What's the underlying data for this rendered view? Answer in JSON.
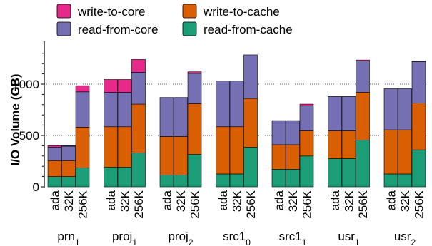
{
  "chart_data": {
    "type": "bar",
    "stacked": true,
    "ylabel": "I/O Volume (GB)",
    "yticks": [
      0,
      500,
      1000
    ],
    "ylim": [
      0,
      1430
    ],
    "grid": "dotted horizontal at 500 and 1000",
    "legend_position": "top",
    "colors": {
      "read-from-cache": "#1b9e77",
      "write-to-cache": "#d95f02",
      "read-from-core": "#7570b3",
      "write-to-core": "#e7298a"
    },
    "legend": [
      {
        "key": "write-to-core",
        "label": "write-to-core"
      },
      {
        "key": "write-to-cache",
        "label": "write-to-cache"
      },
      {
        "key": "read-from-core",
        "label": "read-from-core"
      },
      {
        "key": "read-from-cache",
        "label": "read-from-cache"
      }
    ],
    "series_order": [
      "read-from-cache",
      "write-to-cache",
      "read-from-core",
      "write-to-core"
    ],
    "bar_labels": [
      "ada",
      "32K",
      "256K"
    ],
    "groups": [
      {
        "name": "prn",
        "sub": "1",
        "bars": [
          {
            "read-from-cache": 100,
            "write-to-cache": 155,
            "read-from-core": 130,
            "write-to-core": 15
          },
          {
            "read-from-cache": 100,
            "write-to-cache": 155,
            "read-from-core": 140,
            "write-to-core": 5
          },
          {
            "read-from-cache": 185,
            "write-to-cache": 395,
            "read-from-core": 345,
            "write-to-core": 60
          }
        ]
      },
      {
        "name": "proj",
        "sub": "1",
        "bars": [
          {
            "read-from-cache": 190,
            "write-to-cache": 395,
            "read-from-core": 335,
            "write-to-core": 125
          },
          {
            "read-from-cache": 190,
            "write-to-cache": 395,
            "read-from-core": 335,
            "write-to-core": 125
          },
          {
            "read-from-cache": 330,
            "write-to-cache": 475,
            "read-from-core": 310,
            "write-to-core": 125
          }
        ]
      },
      {
        "name": "proj",
        "sub": "2",
        "bars": [
          {
            "read-from-cache": 115,
            "write-to-cache": 375,
            "read-from-core": 380,
            "write-to-core": 0
          },
          {
            "read-from-cache": 115,
            "write-to-cache": 375,
            "read-from-core": 380,
            "write-to-core": 0
          },
          {
            "read-from-cache": 315,
            "write-to-cache": 495,
            "read-from-core": 295,
            "write-to-core": 15
          }
        ]
      },
      {
        "name": "src1",
        "sub": "0",
        "bars": [
          {
            "read-from-cache": 125,
            "write-to-cache": 460,
            "read-from-core": 445,
            "write-to-core": 0
          },
          {
            "read-from-cache": 125,
            "write-to-cache": 460,
            "read-from-core": 445,
            "write-to-core": 0
          },
          {
            "read-from-cache": 385,
            "write-to-cache": 475,
            "read-from-core": 425,
            "write-to-core": 0
          }
        ]
      },
      {
        "name": "src1",
        "sub": "1",
        "bars": [
          {
            "read-from-cache": 170,
            "write-to-cache": 240,
            "read-from-core": 235,
            "write-to-core": 0
          },
          {
            "read-from-cache": 170,
            "write-to-cache": 240,
            "read-from-core": 235,
            "write-to-core": 0
          },
          {
            "read-from-cache": 300,
            "write-to-cache": 245,
            "read-from-core": 245,
            "write-to-core": 15
          }
        ]
      },
      {
        "name": "usr",
        "sub": "1",
        "bars": [
          {
            "read-from-cache": 275,
            "write-to-cache": 270,
            "read-from-core": 335,
            "write-to-core": 0
          },
          {
            "read-from-cache": 275,
            "write-to-cache": 270,
            "read-from-core": 335,
            "write-to-core": 0
          },
          {
            "read-from-cache": 455,
            "write-to-cache": 465,
            "read-from-core": 305,
            "write-to-core": 10
          }
        ]
      },
      {
        "name": "usr",
        "sub": "2",
        "bars": [
          {
            "read-from-cache": 125,
            "write-to-cache": 430,
            "read-from-core": 400,
            "write-to-core": 0
          },
          {
            "read-from-cache": 125,
            "write-to-cache": 430,
            "read-from-core": 400,
            "write-to-core": 0
          },
          {
            "read-from-cache": 360,
            "write-to-cache": 455,
            "read-from-core": 405,
            "write-to-core": 5
          }
        ]
      }
    ]
  }
}
